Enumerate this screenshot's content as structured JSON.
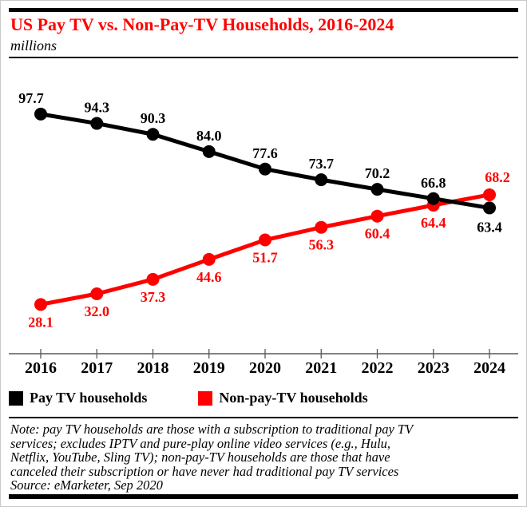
{
  "header": {
    "title": "US Pay TV vs. Non-Pay-TV Households, 2016-2024",
    "subtitle": "millions"
  },
  "chart_data": {
    "type": "line",
    "title": "US Pay TV vs. Non-Pay-TV Households, 2016-2024",
    "unit": "millions",
    "categories": [
      "2016",
      "2017",
      "2018",
      "2019",
      "2020",
      "2021",
      "2022",
      "2023",
      "2024"
    ],
    "series": [
      {
        "name": "Pay TV households",
        "color": "#000000",
        "values": [
          97.7,
          94.3,
          90.3,
          84.0,
          77.6,
          73.7,
          70.2,
          66.8,
          63.4
        ]
      },
      {
        "name": "Non-pay-TV households",
        "color": "#ff0000",
        "values": [
          28.1,
          32.0,
          37.3,
          44.6,
          51.7,
          56.3,
          60.4,
          64.4,
          68.2
        ]
      }
    ],
    "xlabel": "",
    "ylabel": "",
    "ylim": [
      25,
      100
    ],
    "grid": false,
    "data_labels": true,
    "legend_position": "bottom"
  },
  "legend": {
    "items": [
      {
        "label": "Pay TV households",
        "color": "#000000"
      },
      {
        "label": "Non-pay-TV households",
        "color": "#ff0000"
      }
    ]
  },
  "footer": {
    "note_lines": [
      "Note: pay TV households are those with a subscription to traditional pay TV",
      "services; excludes IPTV and pure-play online video services (e.g., Hulu,",
      "Netflix, YouTube, Sling TV); non-pay-TV households are those that have",
      "canceled their subscription or have never had traditional pay TV services"
    ],
    "source": "Source: eMarketer, Sep 2020"
  },
  "colors": {
    "accent_red": "#ff0000",
    "black": "#000000",
    "axis_gray": "#595959"
  }
}
